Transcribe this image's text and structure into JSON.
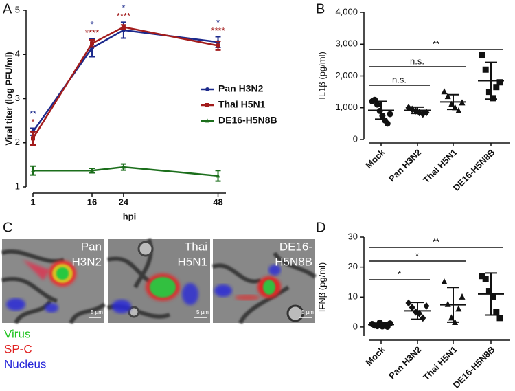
{
  "chart_data": [
    {
      "type": "line",
      "panel": "A",
      "xlabel": "hpi",
      "ylabel": "Viral titer (log PFU/ml)",
      "x": [
        1,
        16,
        24,
        48
      ],
      "xlim": [
        1,
        50
      ],
      "xticks": [
        1,
        16,
        24,
        48
      ],
      "ylim": [
        1,
        5
      ],
      "yticks": [
        1,
        2,
        3,
        4,
        5
      ],
      "series": [
        {
          "name": "Pan H3N2",
          "color": "#1c2a8c",
          "marker": "circle",
          "values": [
            2.25,
            4.15,
            4.55,
            4.28
          ],
          "errors": [
            0.08,
            0.2,
            0.18,
            0.12
          ],
          "stars": [
            "**",
            "*",
            "*",
            "*"
          ]
        },
        {
          "name": "Thai H5N1",
          "color": "#a31c1c",
          "marker": "square",
          "values": [
            2.1,
            4.25,
            4.62,
            4.2
          ],
          "errors": [
            0.15,
            0.08,
            0.05,
            0.1
          ],
          "stars": [
            "*",
            "****",
            "****",
            "****"
          ]
        },
        {
          "name": "DE16-H5N8B",
          "color": "#1b6e1b",
          "marker": "triangle",
          "values": [
            1.37,
            1.37,
            1.45,
            1.25
          ],
          "errors": [
            0.1,
            0.05,
            0.07,
            0.12
          ]
        }
      ]
    },
    {
      "type": "dot",
      "panel": "B",
      "ylabel": "IL1β (pg/ml)",
      "categories": [
        "Mock",
        "Pan H3N2",
        "Thai H5N1",
        "DE16-H5N8B"
      ],
      "markers": [
        "circle",
        "diamond",
        "triangle",
        "square"
      ],
      "points": [
        [
          1200,
          1250,
          1100,
          900,
          750,
          600,
          500,
          800
        ],
        [
          1000,
          950,
          900,
          850,
          800,
          850
        ],
        [
          1500,
          1350,
          1100,
          1000,
          900,
          1150
        ],
        [
          2650,
          2200,
          1500,
          1300,
          1650,
          1800
        ]
      ],
      "means": [
        920,
        920,
        1180,
        1850
      ],
      "sds": [
        280,
        100,
        230,
        580
      ],
      "ylim": [
        0,
        4000
      ],
      "yticks": [
        0,
        {
          "value": 1000,
          "label": "1,000"
        },
        {
          "value": 2000,
          "label": "2,000"
        },
        {
          "value": 3000,
          "label": "3,000"
        },
        {
          "value": 4000,
          "label": "4,000"
        }
      ],
      "brackets": [
        {
          "from": 0,
          "to": 3,
          "label": "**"
        },
        {
          "from": 0,
          "to": 2,
          "label": "n.s."
        },
        {
          "from": 0,
          "to": 1,
          "label": "n.s."
        }
      ]
    },
    {
      "type": "dot",
      "panel": "D",
      "ylabel": "IFNβ (pg/ml)",
      "categories": [
        "Mock",
        "Pan H3N2",
        "Thai H5N1",
        "DE16-H5N8B"
      ],
      "markers": [
        "circle",
        "diamond",
        "triangle",
        "square"
      ],
      "points": [
        [
          1,
          0.5,
          0.3,
          1.5,
          0.2,
          0.8,
          0.1,
          1.2
        ],
        [
          8,
          6.5,
          5,
          4.5,
          3,
          7
        ],
        [
          15,
          7.5,
          3,
          1.5,
          6,
          10
        ],
        [
          17,
          16,
          12,
          10,
          5,
          3
        ]
      ],
      "means": [
        0.8,
        5.4,
        7.4,
        11
      ],
      "sds": [
        0.5,
        2.8,
        5.8,
        7
      ],
      "ylim": [
        -3,
        30
      ],
      "yticks": [
        0,
        10,
        20,
        30
      ],
      "brackets": [
        {
          "from": 0,
          "to": 3,
          "label": "**"
        },
        {
          "from": 0,
          "to": 2,
          "label": "*"
        },
        {
          "from": 0,
          "to": 1,
          "label": "*"
        }
      ]
    }
  ],
  "images": {
    "panel": "C",
    "labels": [
      [
        "Pan",
        "H3N2"
      ],
      [
        "Thai",
        "H5N1"
      ],
      [
        "DE16-",
        "H5N8B"
      ]
    ],
    "scale_bar": "5 µm",
    "legend": [
      {
        "text": "Virus",
        "color": "#22c422"
      },
      {
        "text": "SP-C",
        "color": "#e02020"
      },
      {
        "text": "Nucleus",
        "color": "#2222d8"
      }
    ]
  }
}
